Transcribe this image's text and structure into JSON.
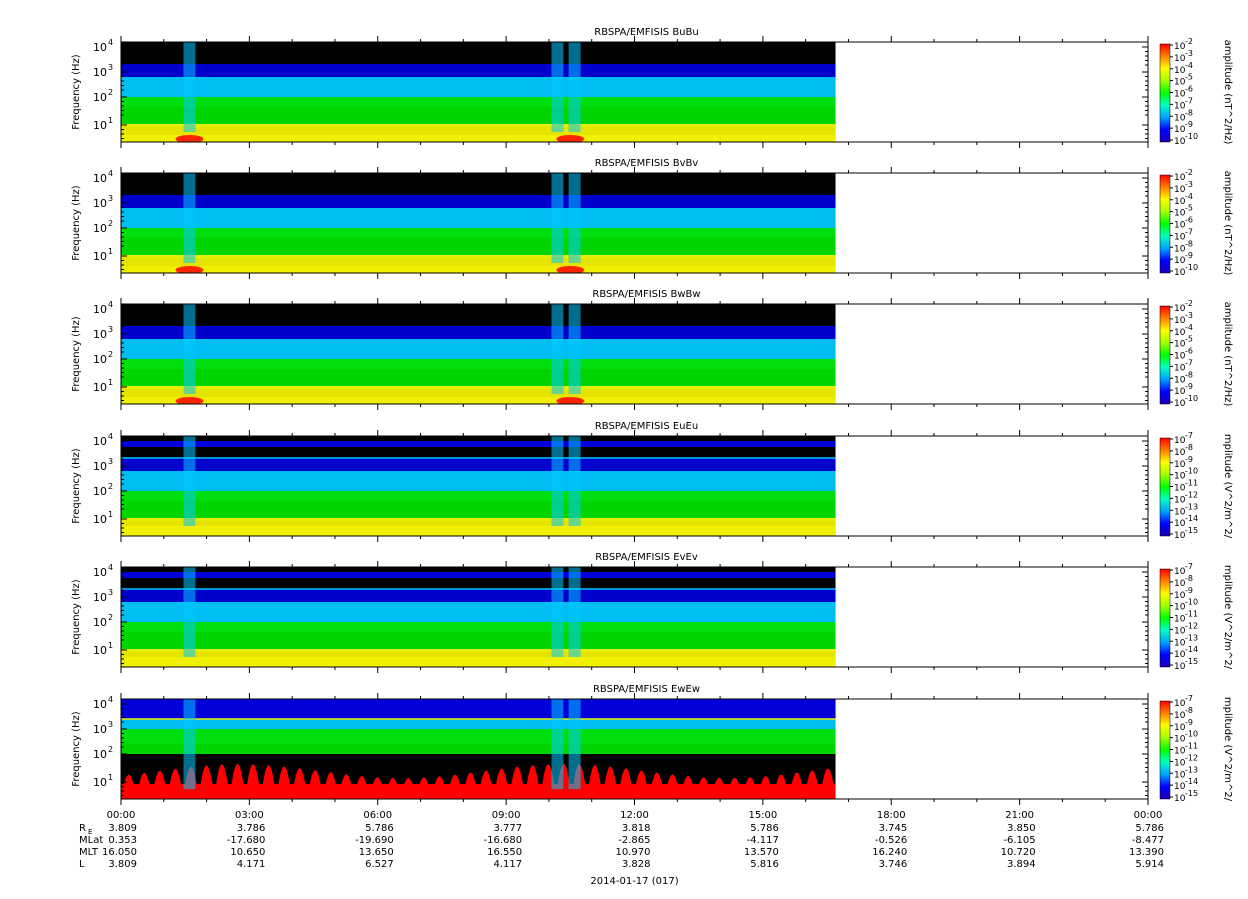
{
  "date_label": "2014-01-17 (017)",
  "panels": [
    {
      "title": "RBSPA/EMFISIS  BuBu",
      "ylabel": "Frequency (Hz)",
      "cbar_label": "amplitude (nT^2/Hz)",
      "cbar_ticks": [
        "10",
        "10",
        "10",
        "10",
        "10",
        "10",
        "10",
        "10",
        "10"
      ],
      "cbar_exps": [
        "-2",
        "-3",
        "-4",
        "-5",
        "-6",
        "-7",
        "-8",
        "-9",
        "-10"
      ],
      "kind": "B"
    },
    {
      "title": "RBSPA/EMFISIS  BvBv",
      "ylabel": "Frequency (Hz)",
      "cbar_label": "amplitude (nT^2/Hz)",
      "cbar_ticks": [
        "10",
        "10",
        "10",
        "10",
        "10",
        "10",
        "10",
        "10",
        "10"
      ],
      "cbar_exps": [
        "-2",
        "-3",
        "-4",
        "-5",
        "-6",
        "-7",
        "-8",
        "-9",
        "-10"
      ],
      "kind": "B"
    },
    {
      "title": "RBSPA/EMFISIS  BwBw",
      "ylabel": "Frequency (Hz)",
      "cbar_label": "amplitude (nT^2/Hz)",
      "cbar_ticks": [
        "10",
        "10",
        "10",
        "10",
        "10",
        "10",
        "10",
        "10",
        "10"
      ],
      "cbar_exps": [
        "-2",
        "-3",
        "-4",
        "-5",
        "-6",
        "-7",
        "-8",
        "-9",
        "-10"
      ],
      "kind": "B"
    },
    {
      "title": "RBSPA/EMFISIS  EuEu",
      "ylabel": "Frequency (Hz)",
      "cbar_label": "mplitude (V^2/m^2/",
      "cbar_ticks": [
        "10",
        "10",
        "10",
        "10",
        "10",
        "10",
        "10",
        "10",
        "10"
      ],
      "cbar_exps": [
        "-7",
        "-8",
        "-9",
        "-10",
        "-11",
        "-12",
        "-13",
        "-14",
        "-15"
      ],
      "kind": "E"
    },
    {
      "title": "RBSPA/EMFISIS  EvEv",
      "ylabel": "Frequency (Hz)",
      "cbar_label": "mplitude (V^2/m^2/",
      "cbar_ticks": [
        "10",
        "10",
        "10",
        "10",
        "10",
        "10",
        "10",
        "10",
        "10"
      ],
      "cbar_exps": [
        "-7",
        "-8",
        "-9",
        "-10",
        "-11",
        "-12",
        "-13",
        "-14",
        "-15"
      ],
      "kind": "E"
    },
    {
      "title": "RBSPA/EMFISIS  EwEw",
      "ylabel": "Frequency (Hz)",
      "cbar_label": "mplitude (V^2/m^2/",
      "cbar_ticks": [
        "10",
        "10",
        "10",
        "10",
        "10",
        "10",
        "10",
        "10",
        "10"
      ],
      "cbar_exps": [
        "-7",
        "-8",
        "-9",
        "-10",
        "-11",
        "-12",
        "-13",
        "-14",
        "-15"
      ],
      "kind": "Ew"
    }
  ],
  "yticks": [
    {
      "base": "10",
      "exp": "4"
    },
    {
      "base": "10",
      "exp": "3"
    },
    {
      "base": "10",
      "exp": "2"
    },
    {
      "base": "10",
      "exp": "1"
    }
  ],
  "colors": {
    "black": "#000000",
    "blue": "#0000d8",
    "cyan": "#00c8ff",
    "green": "#00e000",
    "yellow": "#f0f000",
    "red": "#ff0000"
  },
  "chart_data": {
    "type": "heatmap",
    "x_range_hours": [
      0,
      24
    ],
    "data_end_hour": 16.7,
    "y_scale": "log",
    "xticks": [
      "00:00",
      "03:00",
      "06:00",
      "09:00",
      "12:00",
      "15:00",
      "18:00",
      "21:00",
      "00:00"
    ],
    "ephemeris": [
      {
        "name": "R",
        "sub": "E",
        "values": [
          "3.809",
          "3.786",
          "5.786",
          "3.777",
          "3.818",
          "5.786",
          "3.745",
          "3.850",
          "5.786"
        ]
      },
      {
        "name": "MLat",
        "sub": "",
        "values": [
          "0.353",
          "-17.680",
          "-19.690",
          "-16.680",
          "-2.865",
          "-4.117",
          "-0.526",
          "-6.105",
          "-8.477"
        ]
      },
      {
        "name": "MLT",
        "sub": "",
        "values": [
          "16.050",
          "10.650",
          "13.650",
          "16.550",
          "10.970",
          "13.570",
          "16.240",
          "10.720",
          "13.390"
        ]
      },
      {
        "name": "L",
        "sub": "",
        "values": [
          "3.809",
          "4.171",
          "6.527",
          "4.117",
          "3.828",
          "5.816",
          "3.746",
          "3.894",
          "5.914"
        ]
      }
    ]
  }
}
